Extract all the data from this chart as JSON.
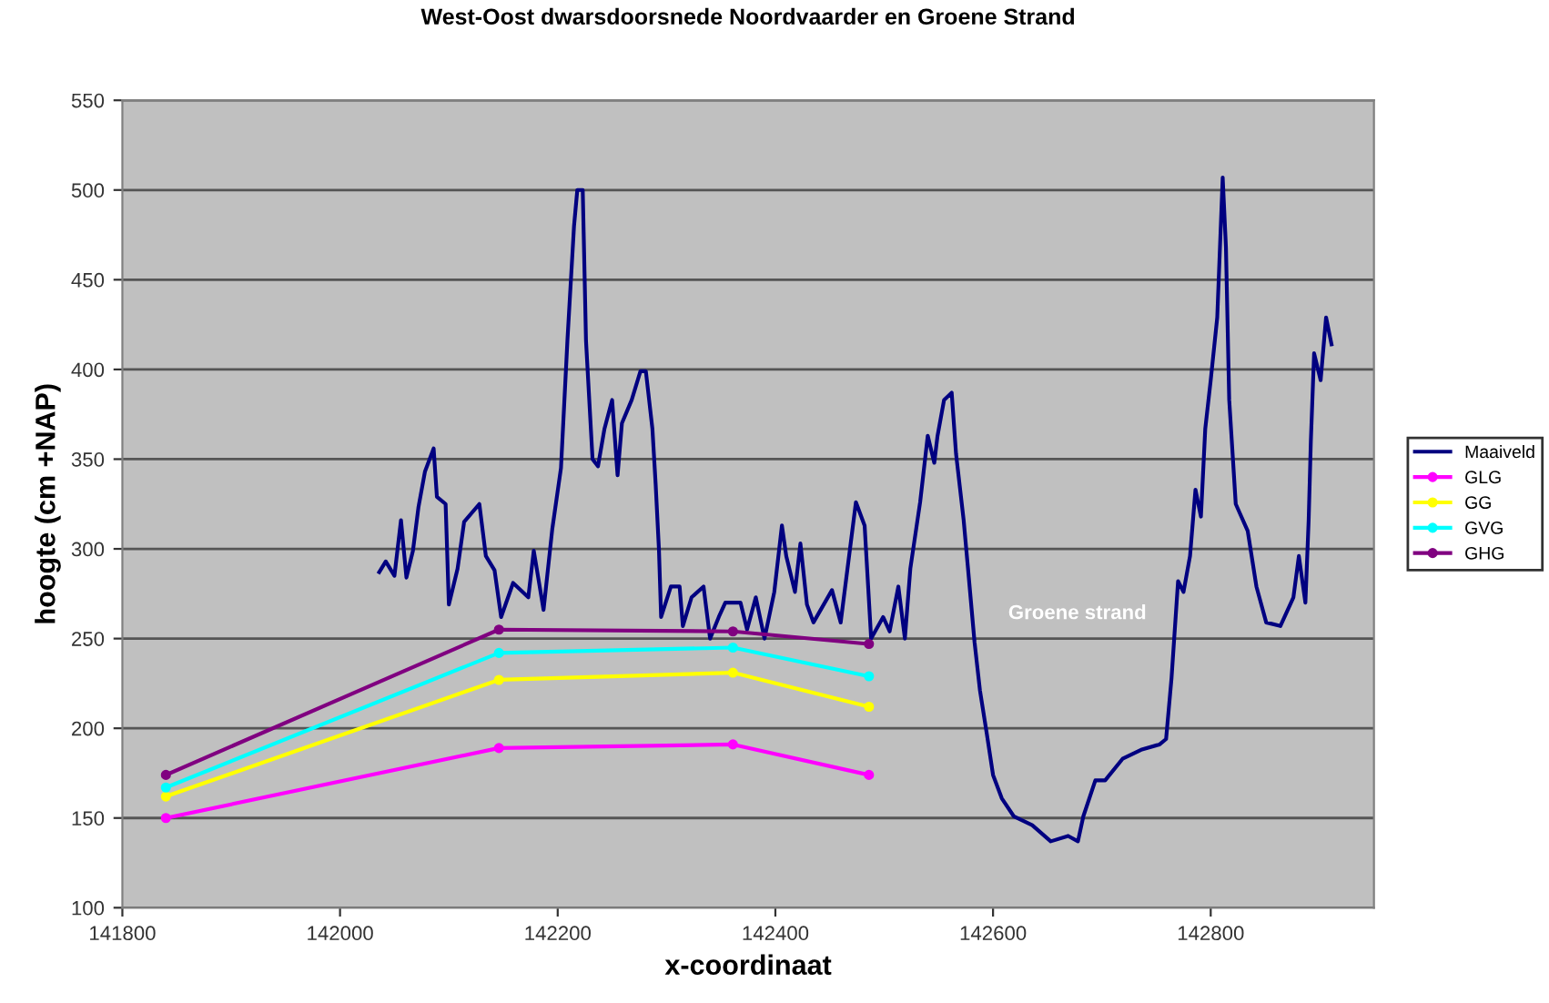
{
  "chart_data": {
    "type": "line",
    "title": "West-Oost dwarsdoorsnede Noordvaarder en Groene Strand",
    "xlabel": "x-coordinaat",
    "ylabel": "hoogte (cm +NAP)",
    "xlim": [
      141800,
      142950
    ],
    "xticks": [
      141800,
      142000,
      142200,
      142400,
      142600,
      142800
    ],
    "ylim": [
      100,
      550
    ],
    "yticks": [
      100,
      150,
      200,
      250,
      300,
      350,
      400,
      450,
      500,
      550
    ],
    "grid": "y",
    "legend": "right",
    "annotations": [
      "Groene strand"
    ],
    "series": [
      {
        "name": "Maaiveld",
        "color": "#000080",
        "marker": "none",
        "x": [
          142036,
          142042,
          142050,
          142056,
          142061,
          142067,
          142072,
          142078,
          142086,
          142089,
          142097,
          142100,
          142108,
          142114,
          142128,
          142134,
          142142,
          142148,
          142159,
          142173,
          142178,
          142187,
          142195,
          142203,
          142209,
          142215,
          142218,
          142223,
          142226,
          142232,
          142237,
          142243,
          142250,
          142255,
          142259,
          142268,
          142276,
          142281,
          142287,
          142290,
          142293,
          142295,
          142304,
          142312,
          142315,
          142323,
          142334,
          142340,
          142348,
          142354,
          142368,
          142374,
          142382,
          142390,
          142399,
          142406,
          142410,
          142418,
          142423,
          142429,
          142435,
          142452,
          142460,
          142474,
          142482,
          142488,
          142499,
          142505,
          142513,
          142519,
          142524,
          142533,
          142540,
          142546,
          142549,
          142555,
          142562,
          142566,
          142573,
          142577,
          142583,
          142588,
          142594,
          142600,
          142608,
          142619,
          142636,
          142653,
          142669,
          142678,
          142683,
          142694,
          142703,
          142719,
          142736,
          142753,
          142759,
          142764,
          142770,
          142775,
          142781,
          142786,
          142791,
          142795,
          142800,
          142806,
          142811,
          142814,
          142817,
          142823,
          142834,
          142842,
          142851,
          142864,
          142876,
          142881,
          142887,
          142890,
          142892,
          142895,
          142901,
          142906,
          142911
        ],
        "values": [
          287,
          293,
          285,
          316,
          284,
          299,
          323,
          343,
          356,
          329,
          325,
          269,
          289,
          315,
          325,
          296,
          288,
          262,
          281,
          273,
          299,
          266,
          311,
          345,
          417,
          480,
          500,
          500,
          416,
          350,
          346,
          367,
          383,
          341,
          370,
          383,
          399,
          399,
          367,
          336,
          300,
          262,
          279,
          279,
          257,
          273,
          279,
          250,
          262,
          270,
          270,
          255,
          273,
          250,
          276,
          313,
          296,
          276,
          303,
          269,
          259,
          277,
          259,
          326,
          313,
          250,
          262,
          254,
          279,
          250,
          289,
          326,
          363,
          348,
          363,
          383,
          387,
          353,
          316,
          289,
          248,
          221,
          198,
          174,
          161,
          151,
          146,
          137,
          140,
          137,
          151,
          171,
          171,
          183,
          188,
          191,
          194,
          228,
          282,
          276,
          296,
          333,
          318,
          367,
          394,
          429,
          507,
          468,
          383,
          325,
          310,
          279,
          259,
          257,
          273,
          296,
          270,
          316,
          360,
          409,
          394,
          429,
          414
        ]
      },
      {
        "name": "GLG",
        "color": "#ff00ff",
        "marker": "circle",
        "x": [
          141840,
          142146,
          142361,
          142486
        ],
        "values": [
          150,
          189,
          191,
          174
        ]
      },
      {
        "name": "GG",
        "color": "#ffff00",
        "marker": "circle",
        "x": [
          141840,
          142146,
          142361,
          142486
        ],
        "values": [
          162,
          227,
          231,
          212
        ]
      },
      {
        "name": "GVG",
        "color": "#00ffff",
        "marker": "circle",
        "x": [
          141840,
          142146,
          142361,
          142486
        ],
        "values": [
          167,
          242,
          245,
          229
        ]
      },
      {
        "name": "GHG",
        "color": "#800080",
        "marker": "circle",
        "x": [
          141840,
          142146,
          142361,
          142486
        ],
        "values": [
          174,
          255,
          254,
          247
        ]
      }
    ]
  }
}
